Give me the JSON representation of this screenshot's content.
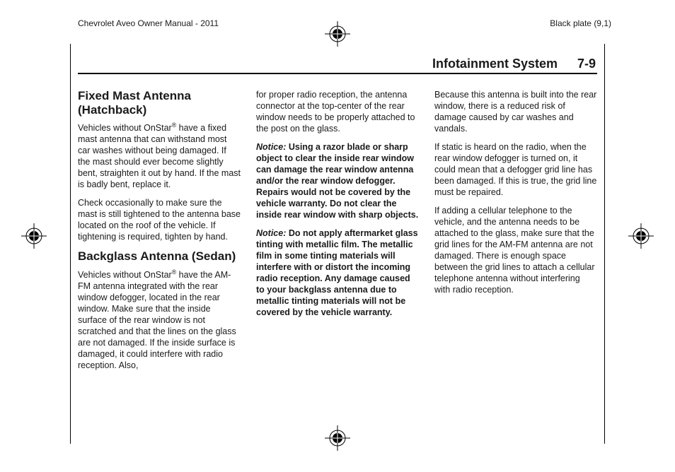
{
  "header": {
    "left": "Chevrolet Aveo Owner Manual - 2011",
    "right": "Black plate (9,1)"
  },
  "section": {
    "title": "Infotainment System",
    "page": "7-9"
  },
  "registration_mark": {
    "stroke": "#000000",
    "fill": "#ffffff",
    "radius_outer": 11,
    "radius_inner": 7,
    "cross": 18
  },
  "col1": {
    "h1": "Fixed Mast Antenna (Hatchback)",
    "p1a": "Vehicles without OnStar",
    "p1b": " have a fixed mast antenna that can withstand most car washes without being damaged. If the mast should ever become slightly bent, straighten it out by hand. If the mast is badly bent, replace it.",
    "p2": "Check occasionally to make sure the mast is still tightened to the antenna base located on the roof of the vehicle. If tightening is required, tighten by hand.",
    "h2": "Backglass Antenna (Sedan)",
    "p3a": "Vehicles without OnStar",
    "p3b": " have the AM-FM antenna integrated with the rear window defogger, located in the rear window. Make sure that the inside surface of the rear window is not scratched and that the lines on the glass are not damaged. If the inside surface is damaged, it could interfere with radio reception. Also,",
    "reg": "®"
  },
  "col2": {
    "p1": "for proper radio reception, the antenna connector at the top-center of the rear window needs to be properly attached to the post on the glass.",
    "notice": "Notice:",
    "p2": "Using a razor blade or sharp object to clear the inside rear window can damage the rear window antenna and/or the rear window defogger. Repairs would not be covered by the vehicle warranty. Do not clear the inside rear window with sharp objects.",
    "p3": "Do not apply aftermarket glass tinting with metallic film. The metallic film in some tinting materials will interfere with or distort the incoming radio reception. Any damage caused to your backglass antenna due to metallic tinting materials will not be covered by the vehicle warranty."
  },
  "col3": {
    "p1": "Because this antenna is built into the rear window, there is a reduced risk of damage caused by car washes and vandals.",
    "p2": "If static is heard on the radio, when the rear window defogger is turned on, it could mean that a defogger grid line has been damaged. If this is true, the grid line must be repaired.",
    "p3": "If adding a cellular telephone to the vehicle, and the antenna needs to be attached to the glass, make sure that the grid lines for the AM-FM antenna are not damaged. There is enough space between the grid lines to attach a cellular telephone antenna without interfering with radio reception."
  }
}
